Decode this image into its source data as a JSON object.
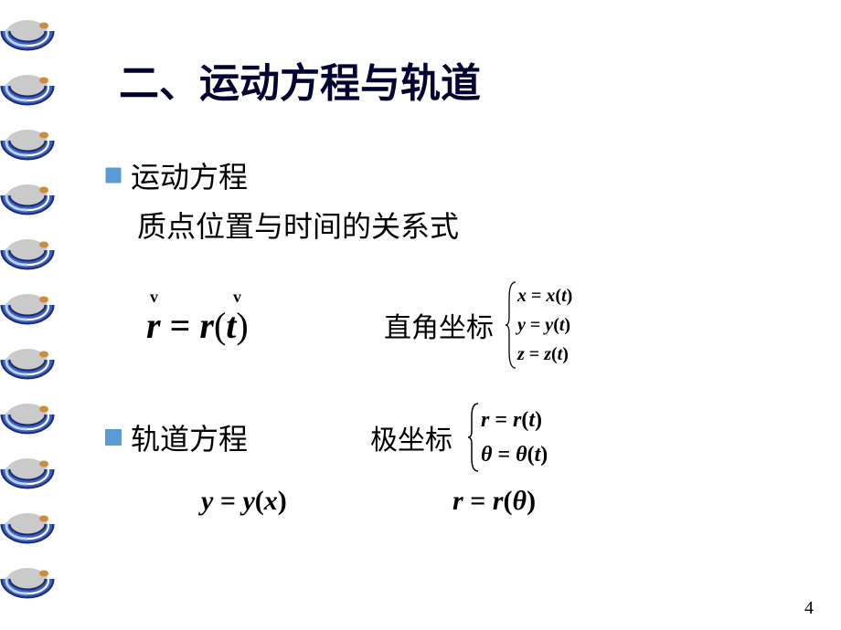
{
  "spiral": {
    "rings": 11,
    "ring_height": 60,
    "colors": {
      "dark_blue": "#1a2a6c",
      "mid_blue": "#3b5fc4",
      "light_blue": "#b9d4f2",
      "white": "#ffffff",
      "orange": "#d08a3a",
      "shadow": "#666666"
    }
  },
  "title": "二、运动方程与轨道",
  "bullet_color": "#5a9bd5",
  "section1": {
    "heading": "运动方程",
    "sub": "质点位置与时间的关系式"
  },
  "vec_equation": {
    "r1": "r",
    "eq": " = ",
    "r2": "r",
    "paren_t": "(t)",
    "caron": "v"
  },
  "cartesian": {
    "label": "直角坐标",
    "lines": [
      "x = x(t)",
      "y = y(t)",
      "z = z(t)"
    ]
  },
  "section2": {
    "heading": "轨道方程"
  },
  "polar": {
    "label": "极坐标",
    "lines": [
      "r = r(t)",
      "θ = θ(t)"
    ]
  },
  "traj": {
    "eq1": "y = y(x)",
    "eq2": "r = r(θ)"
  },
  "page_number": "4"
}
